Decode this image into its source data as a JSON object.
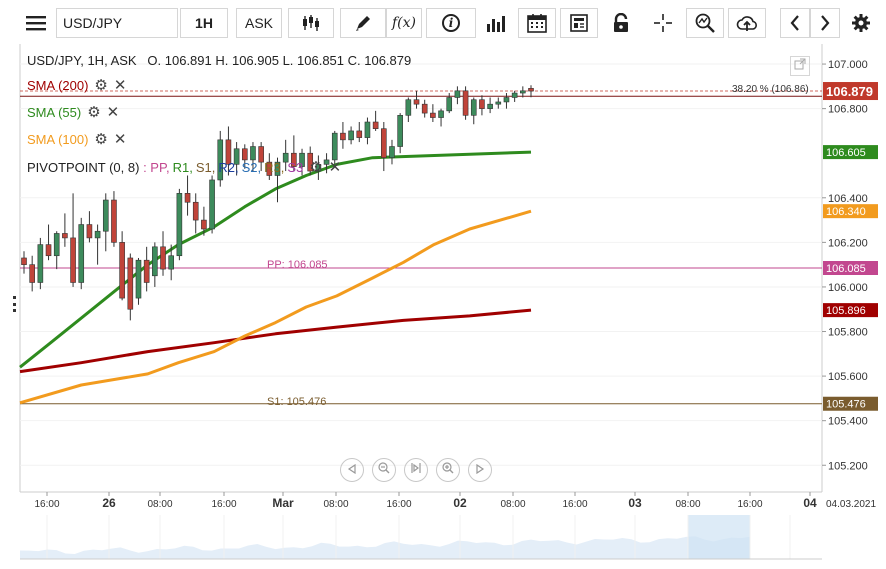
{
  "toolbar": {
    "symbol": "USD/JPY",
    "timeframe": "1H",
    "price_type": "ASK",
    "function_label": "f(x)",
    "info_label": "i"
  },
  "header": {
    "ohlc_text": "USD/JPY, 1H, ASK   O. 106.891 H. 106.905 L. 106.851 C. 106.879"
  },
  "indicators": [
    {
      "label": "SMA (200)",
      "color": "#a00000"
    },
    {
      "label": "SMA (55)",
      "color": "#2e8b1e"
    },
    {
      "label": "SMA (100)",
      "color": "#f29b1e"
    }
  ],
  "pivot": {
    "label": "PIVOTPOINT (0, 8)",
    "series_prefix": " : ",
    "pp": "PP,",
    "r1": "R1,",
    "s1": "S1,",
    "r2": "R2,",
    "s2": "S2,",
    "r3": "R3,",
    "s3": "S3",
    "pp_line_label": "PP: 106.085",
    "s1_line_label": "S1: 105.476"
  },
  "fib": {
    "label": "38.20 % (106.86)"
  },
  "price_axis": {
    "ticks": [
      "107.000",
      "106.800",
      "106.400",
      "106.200",
      "106.000",
      "105.800",
      "105.600",
      "105.400",
      "105.200"
    ],
    "badges": {
      "current": {
        "value": "106.879",
        "color": "#c0392b"
      },
      "sma55": {
        "value": "106.605",
        "color": "#2e8b1e"
      },
      "sma100": {
        "value": "106.340",
        "color": "#f29b1e"
      },
      "pp": {
        "value": "106.085",
        "color": "#c2478f"
      },
      "sma200": {
        "value": "105.896",
        "color": "#a00000"
      },
      "s1": {
        "value": "105.476",
        "color": "#7a5c2e"
      }
    }
  },
  "time_axis": {
    "ticks": [
      "16:00",
      "26",
      "08:00",
      "16:00",
      "Mar",
      "08:00",
      "16:00",
      "02",
      "08:00",
      "16:00",
      "03",
      "08:00",
      "16:00",
      "04"
    ],
    "date_label": "04.03.2021"
  },
  "chart_data": {
    "type": "candlestick",
    "title": "",
    "ylim": [
      105.08,
      107.09
    ],
    "candles": [
      [
        106.13,
        106.16,
        106.06,
        106.1
      ],
      [
        106.1,
        106.14,
        105.98,
        106.02
      ],
      [
        106.02,
        106.22,
        105.99,
        106.19
      ],
      [
        106.19,
        106.28,
        106.12,
        106.14
      ],
      [
        106.14,
        106.25,
        106.08,
        106.24
      ],
      [
        106.24,
        106.33,
        106.18,
        106.22
      ],
      [
        106.22,
        106.42,
        106.0,
        106.02
      ],
      [
        106.02,
        106.31,
        105.99,
        106.28
      ],
      [
        106.28,
        106.34,
        106.2,
        106.22
      ],
      [
        106.22,
        106.28,
        106.1,
        106.25
      ],
      [
        106.25,
        106.42,
        106.16,
        106.39
      ],
      [
        106.39,
        106.43,
        106.18,
        106.2
      ],
      [
        106.2,
        106.25,
        105.94,
        105.95
      ],
      [
        106.13,
        106.15,
        105.85,
        105.9
      ],
      [
        105.95,
        106.13,
        105.92,
        106.12
      ],
      [
        106.12,
        106.18,
        105.98,
        106.02
      ],
      [
        106.05,
        106.2,
        106.0,
        106.18
      ],
      [
        106.18,
        106.25,
        106.05,
        106.08
      ],
      [
        106.08,
        106.19,
        106.03,
        106.14
      ],
      [
        106.14,
        106.44,
        106.12,
        106.42
      ],
      [
        106.42,
        106.5,
        106.32,
        106.38
      ],
      [
        106.38,
        106.42,
        106.24,
        106.3
      ],
      [
        106.3,
        106.36,
        106.23,
        106.26
      ],
      [
        106.26,
        106.5,
        106.24,
        106.48
      ],
      [
        106.48,
        106.7,
        106.45,
        106.66
      ],
      [
        106.66,
        106.72,
        106.5,
        106.55
      ],
      [
        106.55,
        106.65,
        106.5,
        106.62
      ],
      [
        106.62,
        106.64,
        106.53,
        106.57
      ],
      [
        106.57,
        106.65,
        106.52,
        106.63
      ],
      [
        106.63,
        106.65,
        106.52,
        106.56
      ],
      [
        106.56,
        106.6,
        106.48,
        106.5
      ],
      [
        106.5,
        106.58,
        106.38,
        106.56
      ],
      [
        106.56,
        106.66,
        106.52,
        106.6
      ],
      [
        106.6,
        106.68,
        106.52,
        106.54
      ],
      [
        106.54,
        106.62,
        106.5,
        106.6
      ],
      [
        106.6,
        106.63,
        106.5,
        106.52
      ],
      [
        106.52,
        106.59,
        106.48,
        106.55
      ],
      [
        106.55,
        106.6,
        106.51,
        106.57
      ],
      [
        106.57,
        106.7,
        106.55,
        106.69
      ],
      [
        106.69,
        106.74,
        106.62,
        106.66
      ],
      [
        106.66,
        106.72,
        106.64,
        106.7
      ],
      [
        106.7,
        106.74,
        106.65,
        106.67
      ],
      [
        106.67,
        106.76,
        106.64,
        106.74
      ],
      [
        106.74,
        106.79,
        106.7,
        106.71
      ],
      [
        106.71,
        106.74,
        106.52,
        106.58
      ],
      [
        106.58,
        106.66,
        106.55,
        106.63
      ],
      [
        106.63,
        106.78,
        106.6,
        106.77
      ],
      [
        106.77,
        106.85,
        106.74,
        106.84
      ],
      [
        106.84,
        106.88,
        106.8,
        106.82
      ],
      [
        106.82,
        106.84,
        106.76,
        106.78
      ],
      [
        106.78,
        106.82,
        106.74,
        106.76
      ],
      [
        106.76,
        106.8,
        106.72,
        106.79
      ],
      [
        106.79,
        106.87,
        106.78,
        106.85
      ],
      [
        106.85,
        106.9,
        106.82,
        106.88
      ],
      [
        106.88,
        106.9,
        106.75,
        106.77
      ],
      [
        106.77,
        106.85,
        106.73,
        106.84
      ],
      [
        106.84,
        106.86,
        106.77,
        106.8
      ],
      [
        106.8,
        106.85,
        106.78,
        106.82
      ],
      [
        106.82,
        106.85,
        106.8,
        106.83
      ],
      [
        106.83,
        106.87,
        106.8,
        106.85
      ],
      [
        106.85,
        106.88,
        106.83,
        106.87
      ],
      [
        106.87,
        106.9,
        106.85,
        106.88
      ],
      [
        106.891,
        106.905,
        106.851,
        106.879
      ]
    ],
    "sma55": {
      "name": "SMA (55)",
      "points": [
        [
          0,
          105.64
        ],
        [
          0.06,
          105.75
        ],
        [
          0.12,
          105.86
        ],
        [
          0.19,
          105.99
        ],
        [
          0.25,
          106.1
        ],
        [
          0.31,
          106.19
        ],
        [
          0.38,
          106.27
        ],
        [
          0.44,
          106.36
        ],
        [
          0.5,
          106.44
        ],
        [
          0.56,
          106.5
        ],
        [
          0.62,
          106.55
        ],
        [
          0.69,
          106.58
        ],
        [
          1.0,
          106.605
        ]
      ]
    },
    "sma100": {
      "name": "SMA (100)",
      "points": [
        [
          0,
          105.48
        ],
        [
          0.12,
          105.56
        ],
        [
          0.25,
          105.61
        ],
        [
          0.31,
          105.66
        ],
        [
          0.38,
          105.71
        ],
        [
          0.44,
          105.78
        ],
        [
          0.5,
          105.84
        ],
        [
          0.56,
          105.91
        ],
        [
          0.62,
          105.96
        ],
        [
          0.69,
          106.04
        ],
        [
          0.75,
          106.11
        ],
        [
          0.81,
          106.19
        ],
        [
          0.88,
          106.26
        ],
        [
          1.0,
          106.34
        ]
      ]
    },
    "sma200": {
      "name": "SMA (200)",
      "points": [
        [
          0,
          105.62
        ],
        [
          0.12,
          105.66
        ],
        [
          0.25,
          105.71
        ],
        [
          0.38,
          105.75
        ],
        [
          0.5,
          105.79
        ],
        [
          0.62,
          105.82
        ],
        [
          0.75,
          105.85
        ],
        [
          0.88,
          105.87
        ],
        [
          1.0,
          105.896
        ]
      ]
    },
    "pivot_pp": 106.085,
    "pivot_s1": 105.476,
    "fib_38_2": 106.86,
    "last_close": 106.879
  }
}
